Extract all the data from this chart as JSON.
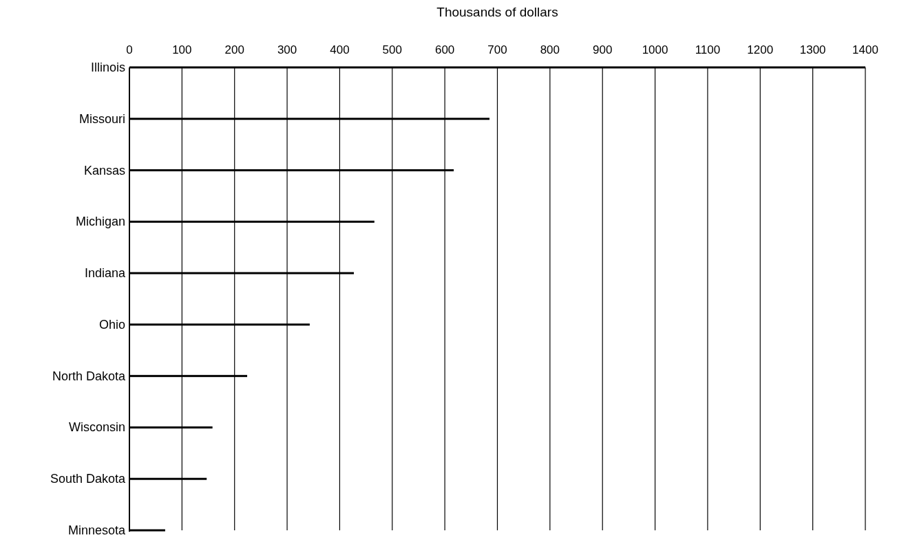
{
  "chart_data": {
    "type": "bar",
    "orientation": "horizontal",
    "xlabel": "Thousands of dollars",
    "categories": [
      "Illinois",
      "Missouri",
      "Kansas",
      "Michigan",
      "Indiana",
      "Ohio",
      "North Dakota",
      "Wisconsin",
      "South Dakota",
      "Minnesota"
    ],
    "values": [
      1400,
      685,
      617,
      466,
      427,
      343,
      224,
      158,
      147,
      68
    ],
    "color": "#000000",
    "xlim": [
      0,
      1400
    ],
    "xticks": [
      0,
      100,
      200,
      300,
      400,
      500,
      600,
      700,
      800,
      900,
      1000,
      1100,
      1200,
      1300,
      1400
    ],
    "grid": "x"
  }
}
